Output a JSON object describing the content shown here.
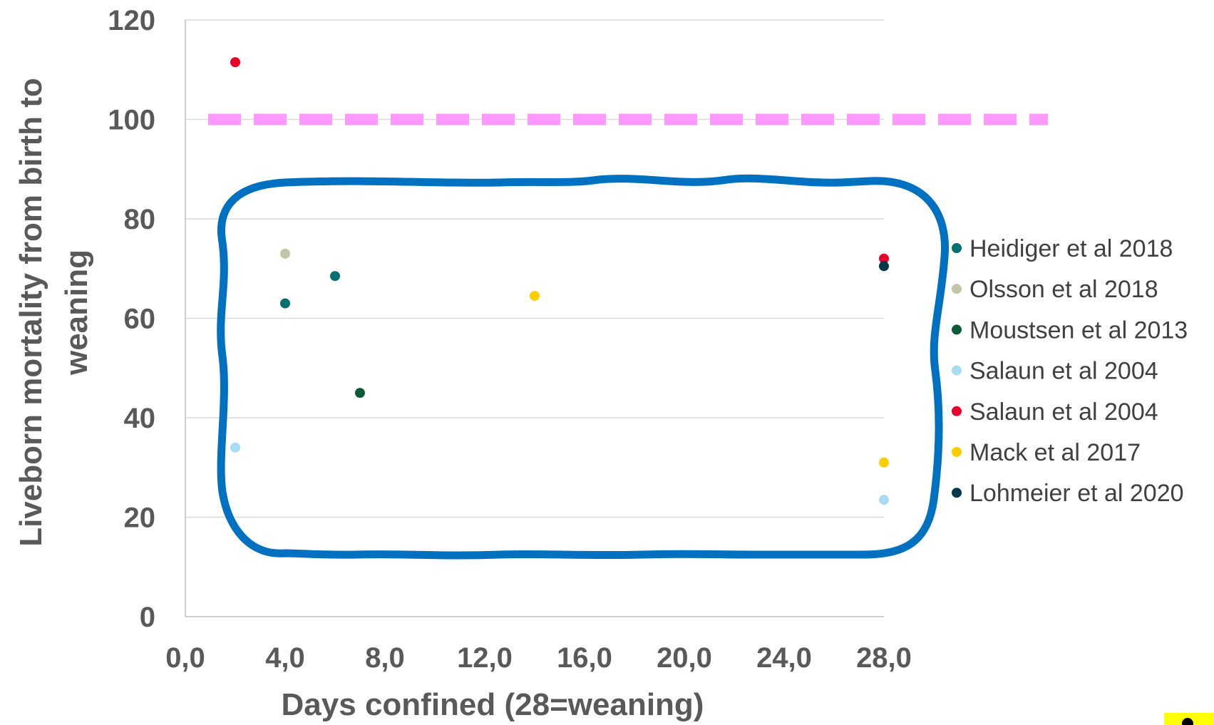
{
  "chart_data": {
    "type": "scatter",
    "title": "",
    "xlabel": "Days confined (28=weaning)",
    "ylabel_line1": "Liveborn mortality from birth to",
    "ylabel_line2": "weaning",
    "xlim": [
      0,
      28
    ],
    "ylim": [
      0,
      120
    ],
    "x_ticks": [
      {
        "value": 0,
        "label": "0,0"
      },
      {
        "value": 4,
        "label": "4,0"
      },
      {
        "value": 8,
        "label": "8,0"
      },
      {
        "value": 12,
        "label": "12,0"
      },
      {
        "value": 16,
        "label": "16,0"
      },
      {
        "value": 20,
        "label": "20,0"
      },
      {
        "value": 24,
        "label": "24,0"
      },
      {
        "value": 28,
        "label": "28,0"
      }
    ],
    "y_ticks": [
      {
        "value": 0,
        "label": "0"
      },
      {
        "value": 20,
        "label": "20"
      },
      {
        "value": 40,
        "label": "40"
      },
      {
        "value": 60,
        "label": "60"
      },
      {
        "value": 80,
        "label": "80"
      },
      {
        "value": 100,
        "label": "100"
      },
      {
        "value": 120,
        "label": "120"
      }
    ],
    "grid": true,
    "legend_position": "right",
    "reference_line": {
      "y": 100,
      "color": "#ff99ff",
      "style": "dashed"
    },
    "annotation_shape": {
      "type": "wavy-rounded-rectangle",
      "color": "#0070c0"
    },
    "series": [
      {
        "name": "Heidiger et al 2018",
        "color": "#007070",
        "points": [
          [
            4,
            63
          ],
          [
            6,
            68.5
          ]
        ]
      },
      {
        "name": "Olsson et al 2018",
        "color": "#c4c4aa",
        "points": [
          [
            4,
            73
          ]
        ]
      },
      {
        "name": "Moustsen et al 2013",
        "color": "#0b5a3a",
        "points": [
          [
            7,
            45
          ]
        ]
      },
      {
        "name": "Salaun et al 2004",
        "color": "#a8dcf0",
        "points": [
          [
            2,
            34
          ],
          [
            28,
            23.5
          ]
        ]
      },
      {
        "name": "Salaun et al 2004",
        "color": "#e8002a",
        "points": [
          [
            2,
            111.5
          ],
          [
            28,
            72
          ]
        ]
      },
      {
        "name": "Mack et al 2017",
        "color": "#ffcc00",
        "points": [
          [
            14,
            64.5
          ],
          [
            28,
            31
          ]
        ]
      },
      {
        "name": "Lohmeier et al 2020",
        "color": "#003a4a",
        "points": [
          [
            28,
            70.5
          ]
        ]
      }
    ]
  },
  "corner_badge": {
    "color": "#ffff00"
  }
}
